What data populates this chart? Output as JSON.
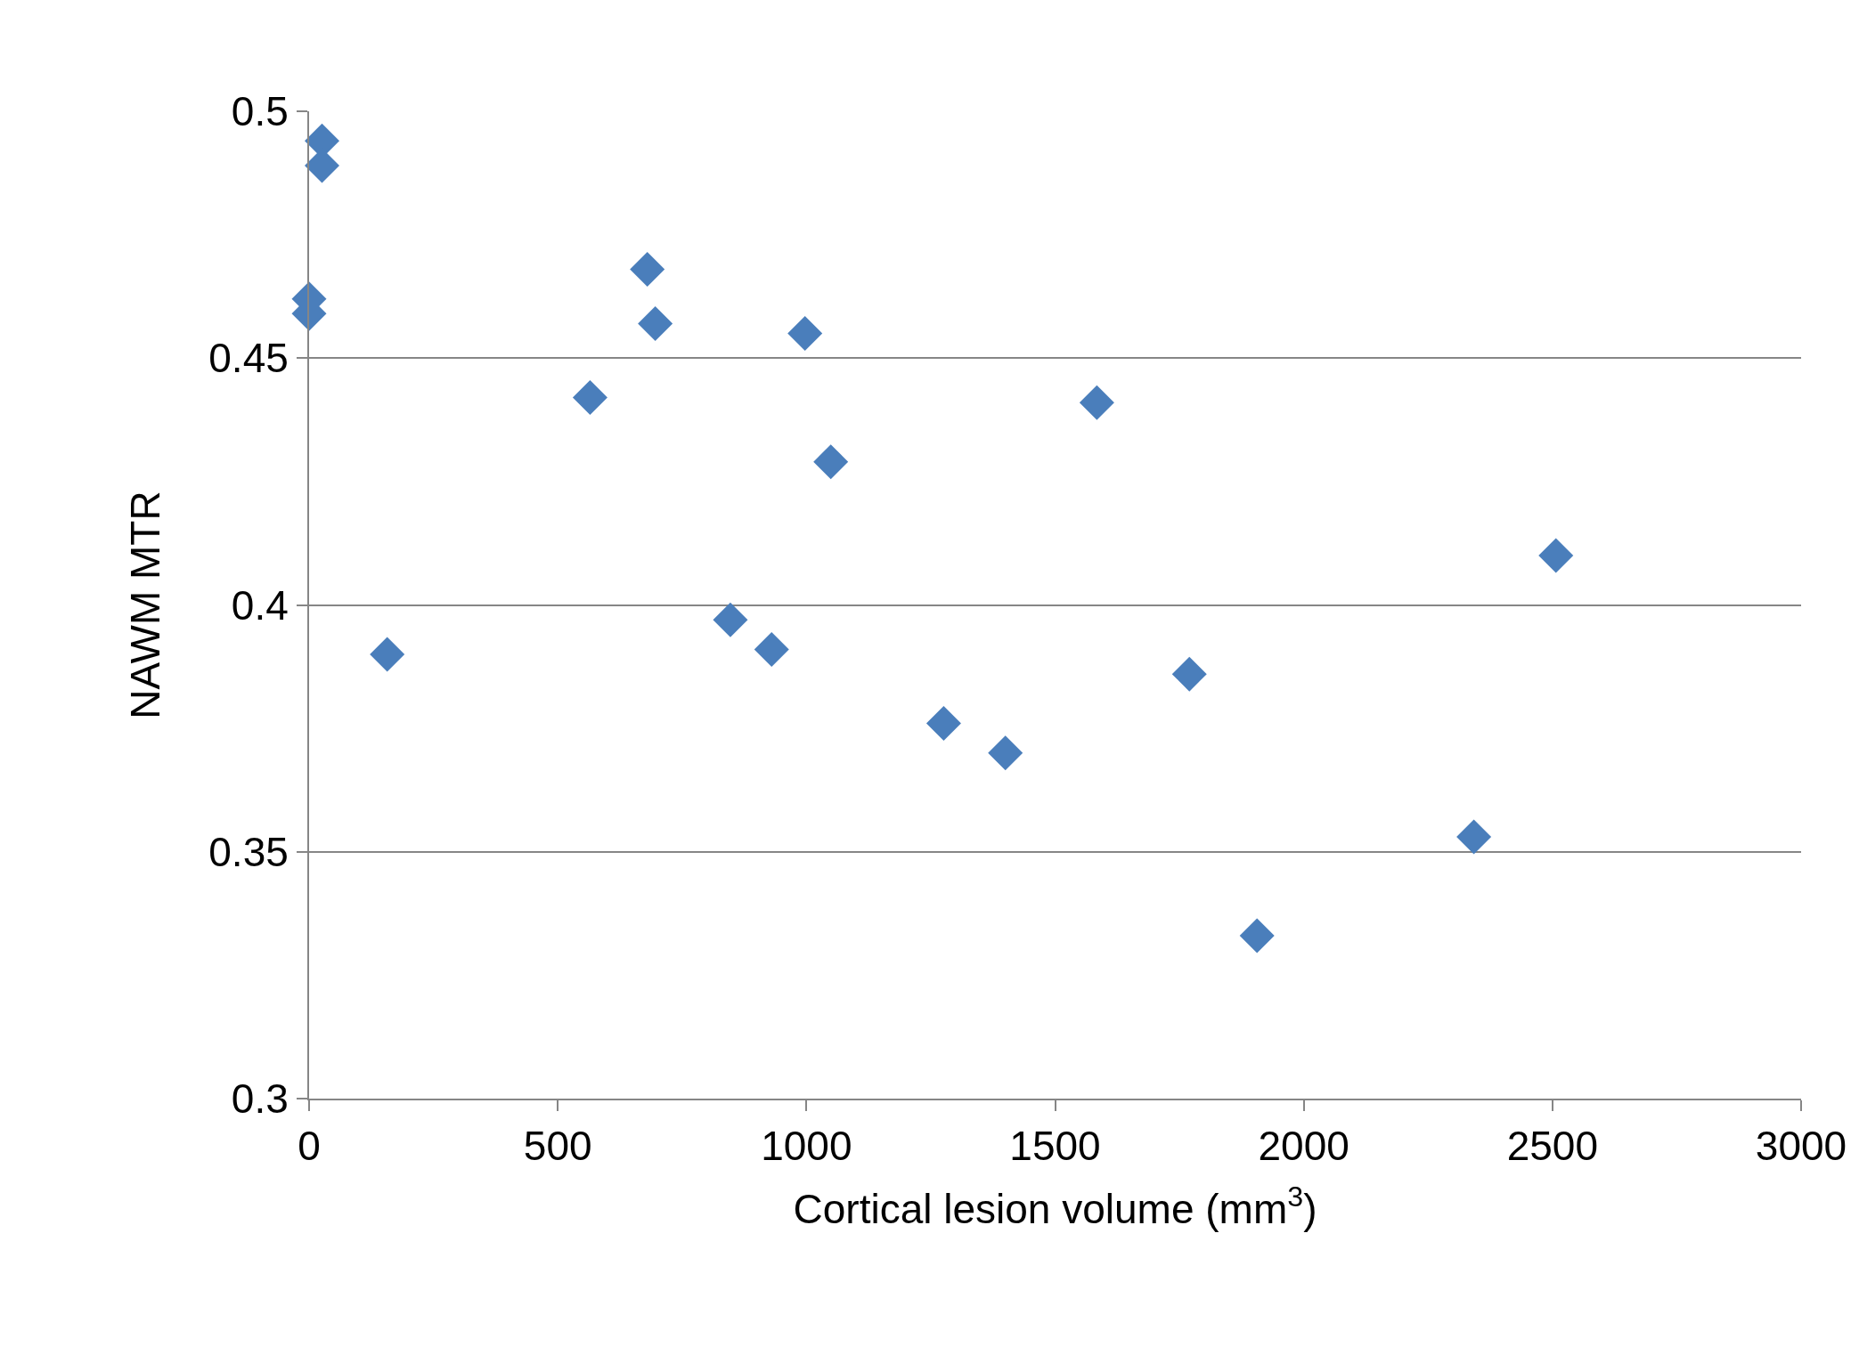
{
  "chart_data": {
    "type": "scatter",
    "xlabel": "Cortical lesion volume (mm$^{3}$)",
    "ylabel": "NAWM MTR",
    "x": [
      26,
      26,
      0,
      0,
      157,
      565,
      680,
      696,
      847,
      930,
      997,
      1049,
      1276,
      1400,
      1584,
      1770,
      1906,
      2342,
      2507
    ],
    "series": [
      {
        "color": "#4a7ebb",
        "values": [
          0.494,
          0.489,
          0.462,
          0.459,
          0.39,
          0.442,
          0.468,
          0.457,
          0.397,
          0.391,
          0.455,
          0.429,
          0.376,
          0.37,
          0.441,
          0.386,
          0.333,
          0.353,
          0.41
        ]
      }
    ],
    "xlim": [
      0,
      3000
    ],
    "xticks": [
      0,
      500,
      1000,
      1500,
      2000,
      2500,
      3000
    ],
    "ylim": [
      0.3,
      0.5
    ],
    "yticks": [
      0.3,
      0.35,
      0.4,
      0.45,
      0.5
    ],
    "grid": "y",
    "marker": "diamond",
    "legend": false
  }
}
